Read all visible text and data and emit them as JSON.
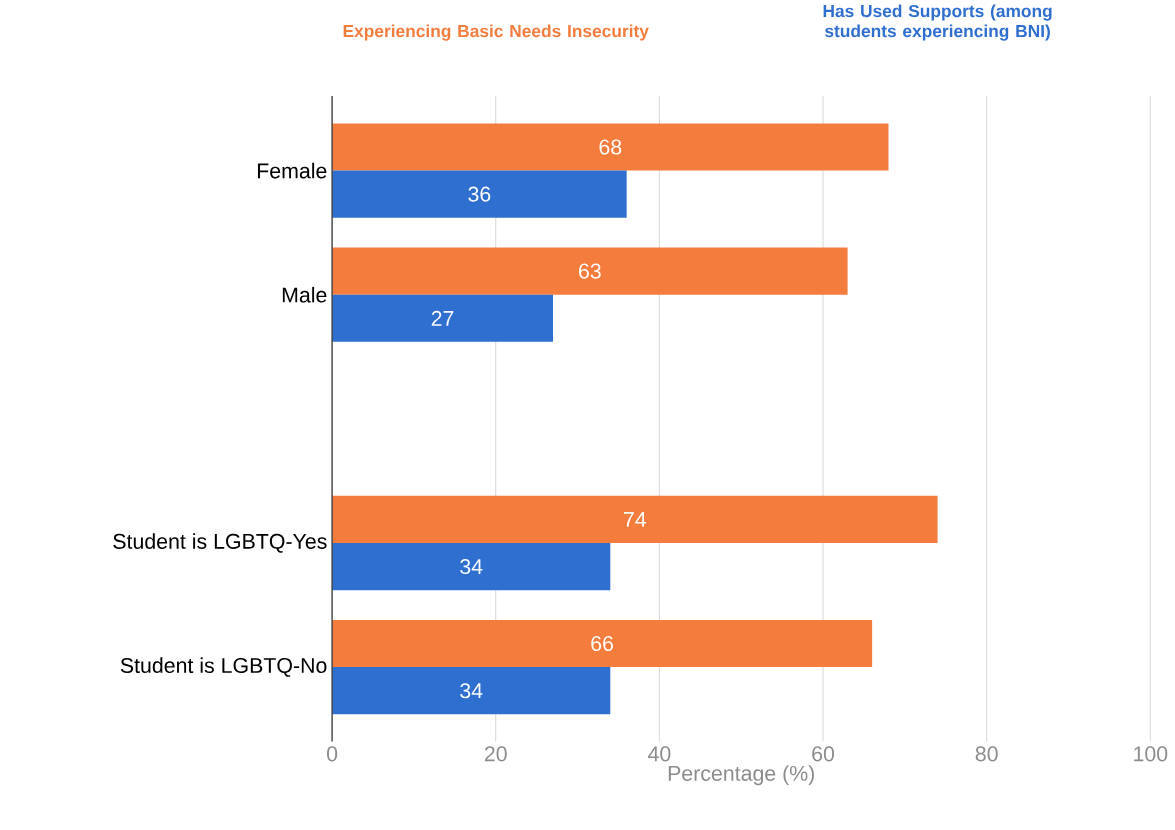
{
  "chart_data": {
    "type": "bar",
    "orientation": "horizontal",
    "xlabel": "Percentage (%)",
    "categories": [
      "Female",
      "Male",
      null,
      "Student is LGBTQ-Yes",
      "Student is LGBTQ-No"
    ],
    "series": [
      {
        "name": "Experiencing Basic Needs Insecurity",
        "color": "#f47c3c",
        "values": [
          68,
          63,
          null,
          74,
          66
        ]
      },
      {
        "name": "Has Used Supports (among students experiencing BNI)",
        "color": "#2f6fd0",
        "values": [
          36,
          27,
          null,
          34,
          34
        ]
      }
    ],
    "xlim": [
      0,
      100
    ],
    "xticks": [
      0,
      20,
      40,
      60,
      80,
      100
    ],
    "grid": "x",
    "legend": "top",
    "data_labels": true
  }
}
